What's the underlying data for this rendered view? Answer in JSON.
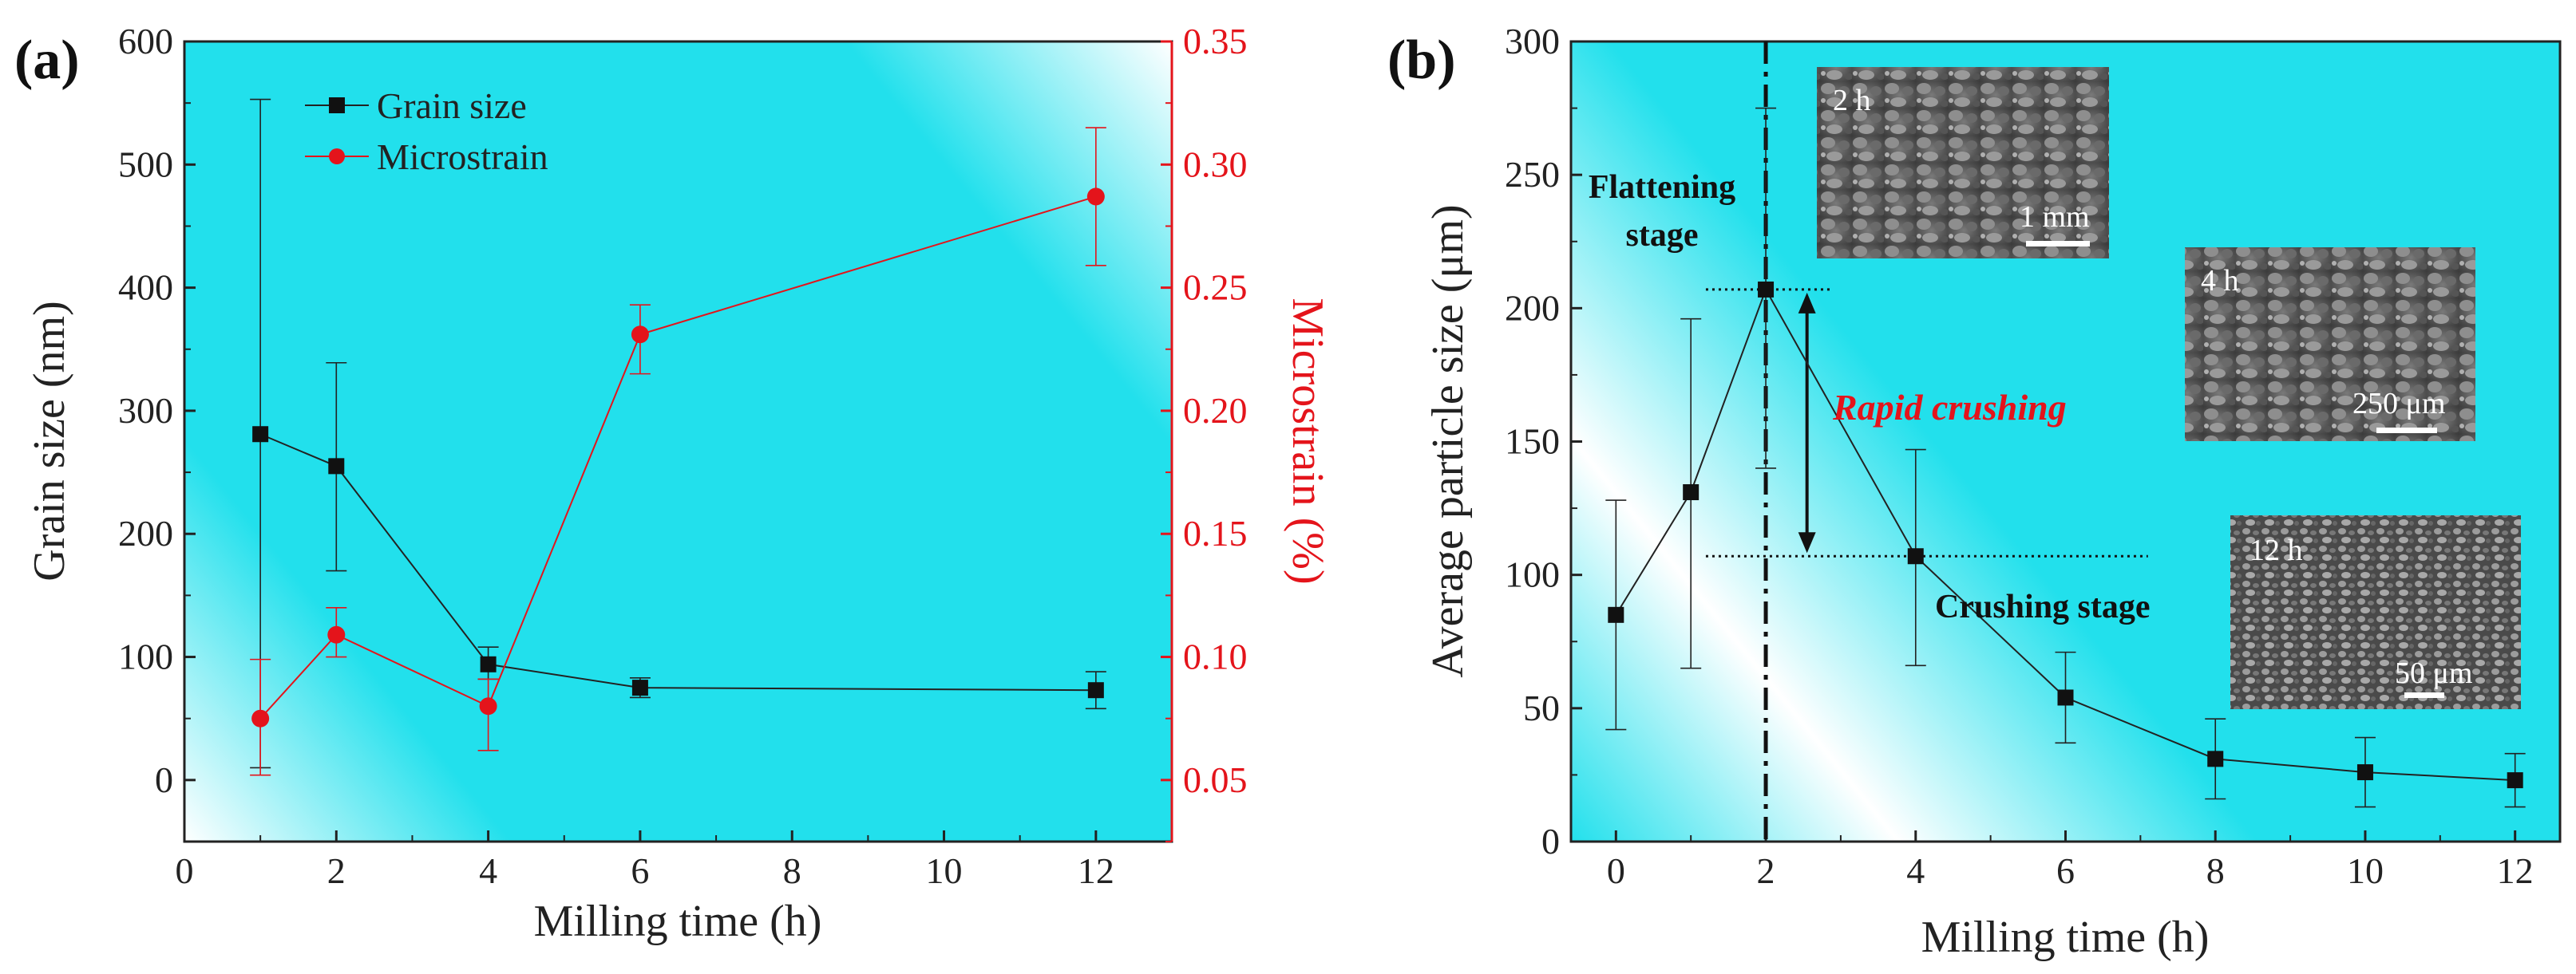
{
  "colors": {
    "grain": "#222222",
    "micro": "#e4141b",
    "bg_cyan": "#1ee0ec",
    "bg_white": "#ffffff"
  },
  "chart_data": [
    {
      "type": "line",
      "panel_label": "(a)",
      "xlabel": "Milling time (h)",
      "ylabel": "Grain size (nm)",
      "y2label": "Microstrain (%)",
      "xlim": [
        0,
        13
      ],
      "ylim": [
        -50,
        600
      ],
      "y2lim": [
        0.025,
        0.35
      ],
      "xticks": [
        "0",
        "2",
        "4",
        "6",
        "8",
        "10",
        "12"
      ],
      "yticks": [
        "0",
        "100",
        "200",
        "300",
        "400",
        "500",
        "600"
      ],
      "y2ticks": [
        "0.05",
        "0.10",
        "0.15",
        "0.20",
        "0.25",
        "0.30",
        "0.35"
      ],
      "legend": [
        "Grain size",
        "Microstrain"
      ],
      "series": [
        {
          "name": "Grain size",
          "axis": "left",
          "x": [
            1,
            2,
            4,
            6,
            12
          ],
          "y": [
            281,
            255,
            94,
            75,
            73
          ],
          "err_low": [
            271,
            85,
            12,
            8,
            15
          ],
          "err_high": [
            272,
            84,
            14,
            8,
            15
          ]
        },
        {
          "name": "Microstrain",
          "axis": "right",
          "x": [
            1,
            2,
            4,
            6,
            12
          ],
          "y": [
            0.075,
            0.109,
            0.08,
            0.231,
            0.287
          ],
          "err_low": [
            0.023,
            0.009,
            0.018,
            0.016,
            0.028
          ],
          "err_high": [
            0.024,
            0.011,
            0.011,
            0.012,
            0.028
          ]
        }
      ]
    },
    {
      "type": "line",
      "panel_label": "(b)",
      "xlabel": "Milling time (h)",
      "ylabel": "Average particle size (μm)",
      "xlim": [
        -0.6,
        12.6
      ],
      "ylim": [
        0,
        300
      ],
      "xticks": [
        "0",
        "2",
        "4",
        "6",
        "8",
        "10",
        "12"
      ],
      "yticks": [
        "0",
        "50",
        "100",
        "150",
        "200",
        "250",
        "300"
      ],
      "series": [
        {
          "name": "Average particle size",
          "x": [
            0,
            1,
            2,
            4,
            6,
            8,
            10,
            12
          ],
          "y": [
            85,
            131,
            207,
            107,
            54,
            31,
            26,
            23
          ],
          "err_low": [
            43,
            66,
            67,
            41,
            17,
            15,
            13,
            10
          ],
          "err_high": [
            43,
            65,
            68,
            40,
            17,
            15,
            13,
            10
          ]
        }
      ],
      "annotations": {
        "flattening": [
          "Flattening",
          "stage"
        ],
        "crushing": "Crushing stage",
        "rapid": "Rapid crushing",
        "stage_boundary_x": 2,
        "upper_level_y": 207,
        "lower_level_y": 107
      },
      "insets": [
        {
          "time": "2 h",
          "scale": "1 mm"
        },
        {
          "time": "4 h",
          "scale": "250 μm"
        },
        {
          "time": "12 h",
          "scale": "50 μm"
        }
      ]
    }
  ]
}
